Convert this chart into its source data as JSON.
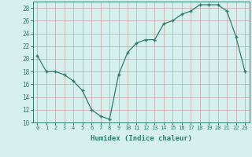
{
  "x": [
    0,
    1,
    2,
    3,
    4,
    5,
    6,
    7,
    8,
    9,
    10,
    11,
    12,
    13,
    14,
    15,
    16,
    17,
    18,
    19,
    20,
    21,
    22,
    23
  ],
  "y": [
    20.5,
    18.0,
    18.0,
    17.5,
    16.5,
    15.0,
    12.0,
    11.0,
    10.5,
    17.5,
    21.0,
    22.5,
    23.0,
    23.0,
    25.5,
    26.0,
    27.0,
    27.5,
    28.5,
    28.5,
    28.5,
    27.5,
    23.5,
    18.0
  ],
  "line_color": "#2e7d6e",
  "marker_color": "#2e7d6e",
  "bg_color": "#d6f0ee",
  "grid_color": "#c8e8e4",
  "xlabel": "Humidex (Indice chaleur)",
  "ylim": [
    10,
    29
  ],
  "xlim": [
    -0.5,
    23.5
  ],
  "yticks": [
    10,
    12,
    14,
    16,
    18,
    20,
    22,
    24,
    26,
    28
  ],
  "xticks": [
    0,
    1,
    2,
    3,
    4,
    5,
    6,
    7,
    8,
    9,
    10,
    11,
    12,
    13,
    14,
    15,
    16,
    17,
    18,
    19,
    20,
    21,
    22,
    23
  ],
  "tick_fontsize": 5.0,
  "ytick_fontsize": 5.5,
  "xlabel_fontsize": 6.5
}
